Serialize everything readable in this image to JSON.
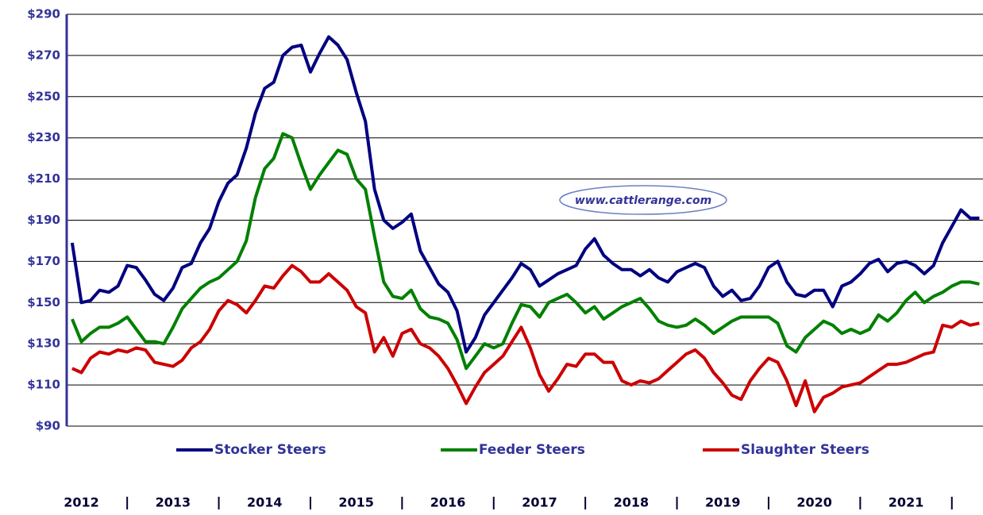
{
  "chart_data": {
    "type": "line",
    "annotation": "www.cattlerange.com",
    "legend": "bottom",
    "grid": true,
    "ylim": [
      90,
      290
    ],
    "yticks": [
      {
        "value": 90,
        "label": "$90"
      },
      {
        "value": 110,
        "label": "$110"
      },
      {
        "value": 130,
        "label": "$130"
      },
      {
        "value": 150,
        "label": "$150"
      },
      {
        "value": 170,
        "label": "$170"
      },
      {
        "value": 190,
        "label": "$190"
      },
      {
        "value": 210,
        "label": "$210"
      },
      {
        "value": 230,
        "label": "$230"
      },
      {
        "value": 250,
        "label": "$250"
      },
      {
        "value": 270,
        "label": "$270"
      },
      {
        "value": 290,
        "label": "$290"
      }
    ],
    "xlim": [
      2012.34,
      2022.34
    ],
    "xticks": [
      {
        "value": 2012.5,
        "label": "2012"
      },
      {
        "value": 2013.5,
        "label": "2013"
      },
      {
        "value": 2014.5,
        "label": "2014"
      },
      {
        "value": 2015.5,
        "label": "2015"
      },
      {
        "value": 2016.5,
        "label": "2016"
      },
      {
        "value": 2017.5,
        "label": "2017"
      },
      {
        "value": 2018.5,
        "label": "2018"
      },
      {
        "value": 2019.5,
        "label": "2019"
      },
      {
        "value": 2020.5,
        "label": "2020"
      },
      {
        "value": 2021.5,
        "label": "2021"
      }
    ],
    "x": [
      2012.4,
      2012.5,
      2012.6,
      2012.7,
      2012.8,
      2012.9,
      2013.0,
      2013.1,
      2013.2,
      2013.3,
      2013.4,
      2013.5,
      2013.6,
      2013.7,
      2013.8,
      2013.9,
      2014.0,
      2014.1,
      2014.2,
      2014.3,
      2014.4,
      2014.5,
      2014.6,
      2014.7,
      2014.8,
      2014.9,
      2015.0,
      2015.1,
      2015.2,
      2015.3,
      2015.4,
      2015.5,
      2015.6,
      2015.7,
      2015.8,
      2015.9,
      2016.0,
      2016.1,
      2016.2,
      2016.3,
      2016.4,
      2016.5,
      2016.6,
      2016.7,
      2016.8,
      2016.9,
      2017.0,
      2017.1,
      2017.2,
      2017.3,
      2017.4,
      2017.5,
      2017.6,
      2017.7,
      2017.8,
      2017.9,
      2018.0,
      2018.1,
      2018.2,
      2018.3,
      2018.4,
      2018.5,
      2018.6,
      2018.7,
      2018.8,
      2018.9,
      2019.0,
      2019.1,
      2019.2,
      2019.3,
      2019.4,
      2019.5,
      2019.6,
      2019.7,
      2019.8,
      2019.9,
      2020.0,
      2020.1,
      2020.2,
      2020.3,
      2020.4,
      2020.5,
      2020.6,
      2020.7,
      2020.8,
      2020.9,
      2021.0,
      2021.1,
      2021.2,
      2021.3,
      2021.4,
      2021.5,
      2021.6,
      2021.7,
      2021.8,
      2021.9,
      2022.0,
      2022.1,
      2022.2,
      2022.3
    ],
    "series": [
      {
        "name": "Stocker Steers",
        "color": "#000080",
        "values": [
          179,
          150,
          151,
          156,
          155,
          158,
          168,
          167,
          161,
          154,
          151,
          157,
          167,
          169,
          179,
          186,
          199,
          208,
          212,
          225,
          242,
          254,
          257,
          270,
          274,
          275,
          262,
          271,
          279,
          275,
          268,
          252,
          238,
          205,
          190,
          186,
          189,
          193,
          175,
          167,
          159,
          155,
          146,
          126,
          133,
          144,
          150,
          156,
          162,
          169,
          166,
          158,
          161,
          164,
          166,
          168,
          176,
          181,
          173,
          169,
          166,
          166,
          163,
          166,
          162,
          160,
          165,
          167,
          169,
          167,
          158,
          153,
          156,
          151,
          152,
          158,
          167,
          170,
          160,
          154,
          153,
          156,
          156,
          148,
          158,
          160,
          164,
          169,
          171,
          165,
          169,
          170,
          168,
          164,
          168,
          179,
          187,
          195,
          191,
          191
        ]
      },
      {
        "name": "Feeder Steers",
        "color": "#008000",
        "values": [
          142,
          131,
          135,
          138,
          138,
          140,
          143,
          137,
          131,
          131,
          130,
          138,
          147,
          152,
          157,
          160,
          162,
          166,
          170,
          180,
          201,
          215,
          220,
          232,
          230,
          217,
          205,
          212,
          218,
          224,
          222,
          210,
          205,
          182,
          160,
          153,
          152,
          156,
          147,
          143,
          142,
          140,
          132,
          118,
          124,
          130,
          128,
          130,
          140,
          149,
          148,
          143,
          150,
          152,
          154,
          150,
          145,
          148,
          142,
          145,
          148,
          150,
          152,
          147,
          141,
          139,
          138,
          139,
          142,
          139,
          135,
          138,
          141,
          143,
          143,
          143,
          143,
          140,
          129,
          126,
          133,
          137,
          141,
          139,
          135,
          137,
          135,
          137,
          144,
          141,
          145,
          151,
          155,
          150,
          153,
          155,
          158,
          160,
          160,
          159
        ]
      },
      {
        "name": "Slaughter Steers",
        "color": "#cc0000",
        "values": [
          118,
          116,
          123,
          126,
          125,
          127,
          126,
          128,
          127,
          121,
          120,
          119,
          122,
          128,
          131,
          137,
          146,
          151,
          149,
          145,
          151,
          158,
          157,
          163,
          168,
          165,
          160,
          160,
          164,
          160,
          156,
          148,
          145,
          126,
          133,
          124,
          135,
          137,
          130,
          128,
          124,
          118,
          110,
          101,
          109,
          116,
          120,
          124,
          131,
          138,
          128,
          115,
          107,
          113,
          120,
          119,
          125,
          125,
          121,
          121,
          112,
          110,
          112,
          111,
          113,
          117,
          121,
          125,
          127,
          123,
          116,
          111,
          105,
          103,
          112,
          118,
          123,
          121,
          112,
          100,
          112,
          97,
          104,
          106,
          109,
          110,
          111,
          114,
          117,
          120,
          120,
          121,
          123,
          125,
          126,
          139,
          138,
          141,
          139,
          140
        ]
      }
    ]
  }
}
